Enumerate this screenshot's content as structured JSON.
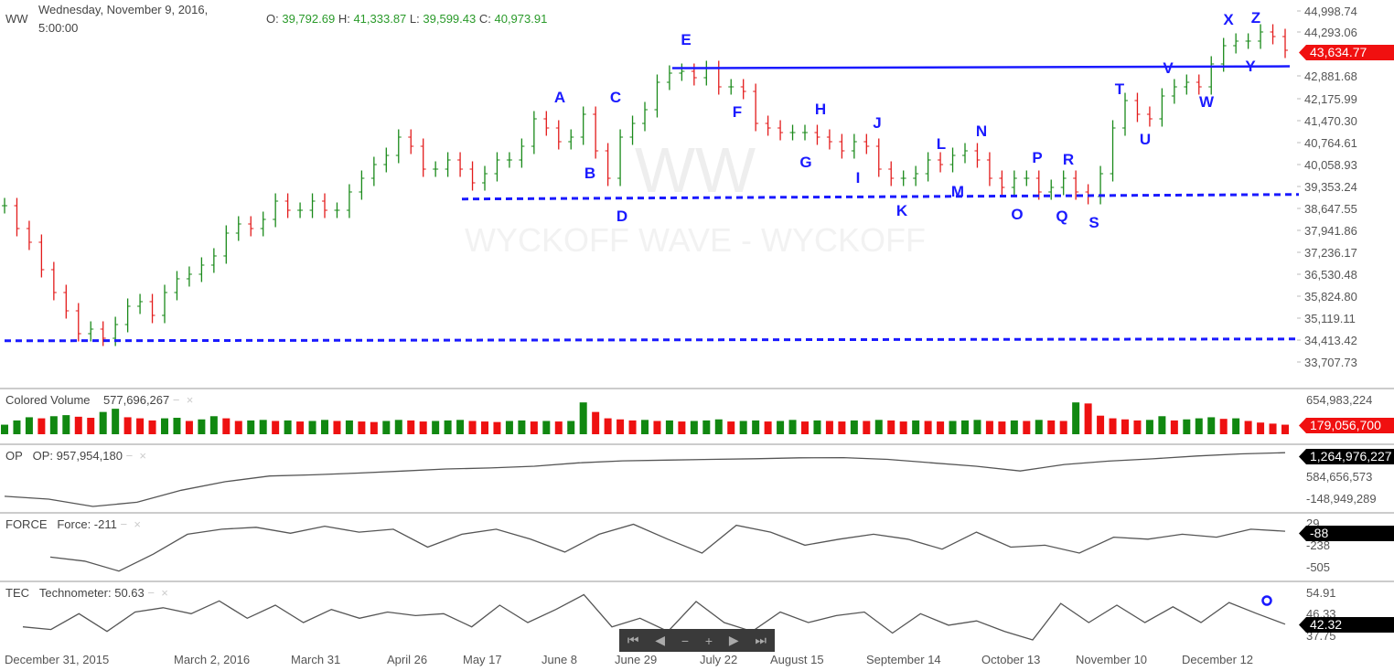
{
  "header": {
    "symbol": "WW",
    "date": "Wednesday, November 9, 2016,",
    "time": "5:00:00",
    "ohlc": {
      "o_label": "O:",
      "o": "39,792.69",
      "h_label": "H:",
      "h": "41,333.87",
      "l_label": "L:",
      "l": "39,599.43",
      "c_label": "C:",
      "c": "40,973.91"
    }
  },
  "watermark": {
    "symbol": "WW",
    "text": "WYCKOFF WAVE - WYCKOFF"
  },
  "colors": {
    "up": "#1a8a1a",
    "down": "#e31b1b",
    "annotation": "#1a1aff",
    "line": "#555555"
  },
  "chart_data": [
    {
      "type": "ohlc",
      "panel": "price",
      "y_ticks": [
        "44,998.74",
        "44,293.06",
        "42,881.68",
        "42,175.99",
        "41,470.30",
        "40,764.61",
        "40,058.93",
        "39,353.24",
        "38,647.55",
        "37,941.86",
        "37,236.17",
        "36,530.48",
        "35,824.80",
        "35,119.11",
        "34,413.42",
        "33,707.73"
      ],
      "ylim": [
        33707.73,
        44998.74
      ],
      "last_price": "43,634.77",
      "x_ticks": [
        "December 31, 2015",
        "March 2, 2016",
        "March 31",
        "April 26",
        "May 17",
        "June 8",
        "June 29",
        "July 22",
        "August 15",
        "September 14",
        "October 13",
        "November 10",
        "December 12"
      ],
      "closes": [
        38736,
        38001,
        37560,
        36678,
        35943,
        35354,
        34619,
        34766,
        34472,
        34913,
        35501,
        35649,
        35207,
        35943,
        36384,
        36531,
        36825,
        37119,
        37854,
        38148,
        38001,
        38295,
        38883,
        38589,
        38589,
        38883,
        38589,
        38589,
        39177,
        39618,
        40059,
        40353,
        40941,
        40647,
        39912,
        39912,
        40206,
        39912,
        39471,
        39765,
        40206,
        40206,
        40647,
        41529,
        41235,
        40794,
        40941,
        41676,
        40500,
        39618,
        40941,
        41382,
        41823,
        42705,
        42999,
        43058,
        42852,
        43147,
        42558,
        42558,
        42411,
        41382,
        41235,
        41088,
        41088,
        41088,
        40941,
        40794,
        40500,
        40794,
        40647,
        39912,
        39618,
        39618,
        39765,
        40206,
        40059,
        40353,
        40500,
        40206,
        39618,
        39324,
        39618,
        39618,
        39177,
        39324,
        39618,
        39177,
        39030,
        39765,
        41235,
        42117,
        41676,
        41529,
        42264,
        42558,
        42705,
        42558,
        43294,
        43882,
        44029,
        44029,
        44323,
        44176,
        43735
      ],
      "levels": [
        {
          "value": 43160,
          "style": "solid"
        },
        {
          "value": 38950,
          "style": "dashed"
        },
        {
          "value": 34390,
          "style": "dashed"
        }
      ],
      "annotations": [
        "A",
        "B",
        "C",
        "D",
        "E",
        "F",
        "G",
        "H",
        "I",
        "J",
        "K",
        "L",
        "M",
        "N",
        "O",
        "P",
        "Q",
        "R",
        "S",
        "T",
        "U",
        "V",
        "W",
        "X",
        "Y",
        "Z"
      ]
    },
    {
      "type": "bar",
      "panel": "volume",
      "title": "Colored Volume",
      "value_label": "577,696,267",
      "y_ticks": [
        "654,983,224"
      ],
      "last_value": "179,056,700",
      "ymax": 654983224,
      "values": [
        180,
        260,
        320,
        300,
        340,
        360,
        330,
        310,
        420,
        480,
        320,
        300,
        260,
        300,
        310,
        250,
        280,
        340,
        300,
        250,
        260,
        270,
        250,
        260,
        240,
        250,
        270,
        250,
        260,
        240,
        230,
        250,
        270,
        260,
        240,
        250,
        260,
        270,
        250,
        240,
        230,
        250,
        260,
        240,
        250,
        240,
        250,
        600,
        420,
        300,
        280,
        260,
        270,
        250,
        260,
        240,
        250,
        260,
        280,
        240,
        250,
        260,
        240,
        250,
        270,
        240,
        260,
        250,
        240,
        260,
        250,
        270,
        260,
        240,
        260,
        250,
        240,
        250,
        260,
        270,
        250,
        240,
        260,
        250,
        270,
        260,
        250,
        600,
        580,
        350,
        300,
        280,
        260,
        270,
        340,
        260,
        280,
        300,
        320,
        290,
        300,
        250,
        220,
        200,
        180
      ]
    },
    {
      "type": "line",
      "panel": "OP",
      "title": "OP",
      "value_label": "OP: 957,954,180",
      "y_ticks": [
        "584,656,573",
        "-148,949,289"
      ],
      "last_value": "1,264,976,227",
      "ylim": [
        -300000000,
        1300000000
      ],
      "values": [
        22000000,
        -60000000,
        -274000000,
        -150000000,
        200000000,
        450000000,
        614000000,
        650000000,
        700000000,
        760000000,
        821000000,
        850000000,
        900000000,
        1000000000,
        1058000000,
        1080000000,
        1100000000,
        1120000000,
        1146000000,
        1150000000,
        1100000000,
        1000000000,
        900000000,
        762000000,
        950000000,
        1050000000,
        1117000000,
        1200000000,
        1260000000,
        1295000000
      ]
    },
    {
      "type": "line",
      "panel": "FORCE",
      "title": "FORCE",
      "value_label": "Force: -211",
      "y_ticks": [
        "29",
        "-238",
        "-505"
      ],
      "last_value": "-88",
      "ylim": [
        -520,
        40
      ],
      "values": [
        -367,
        -410,
        -517,
        -335,
        -121,
        -67,
        -46,
        -110,
        -35,
        -99,
        -67,
        -260,
        -121,
        -67,
        -174,
        -313,
        -121,
        -14,
        -174,
        -324,
        -25,
        -99,
        -239,
        -174,
        -121,
        -174,
        -281,
        -99,
        -260,
        -239,
        -324,
        -153,
        -174,
        -121,
        -153,
        -67,
        -89
      ]
    },
    {
      "type": "line",
      "panel": "TEC",
      "title": "TEC",
      "value_label": "Technometer: 50.63",
      "y_ticks": [
        "54.91",
        "46.33",
        "37.75"
      ],
      "last_value": "42.32",
      "ylim": [
        34,
        57
      ],
      "values": [
        41.4,
        40.3,
        46.9,
        39.5,
        47.6,
        49.4,
        46.9,
        52.3,
        45.0,
        50.5,
        43.2,
        48.7,
        45.0,
        47.6,
        46.1,
        46.9,
        41.4,
        50.5,
        43.2,
        48.7,
        54.9,
        41.4,
        45.0,
        39.5,
        52.0,
        43.2,
        39.5,
        47.6,
        43.2,
        46.1,
        47.6,
        38.8,
        46.9,
        42.1,
        43.9,
        39.5,
        35.9,
        51.2,
        43.2,
        50.5,
        43.2,
        49.8,
        43.2,
        51.6,
        46.9,
        42.5
      ]
    }
  ],
  "navigator": {
    "first": "⏮",
    "prev": "◀",
    "zoom_out": "−",
    "zoom_in": "+",
    "next": "▶",
    "last": "⏭"
  },
  "panel_controls": {
    "minimize": "−",
    "close": "×",
    "up": "↑",
    "down": "↓"
  }
}
